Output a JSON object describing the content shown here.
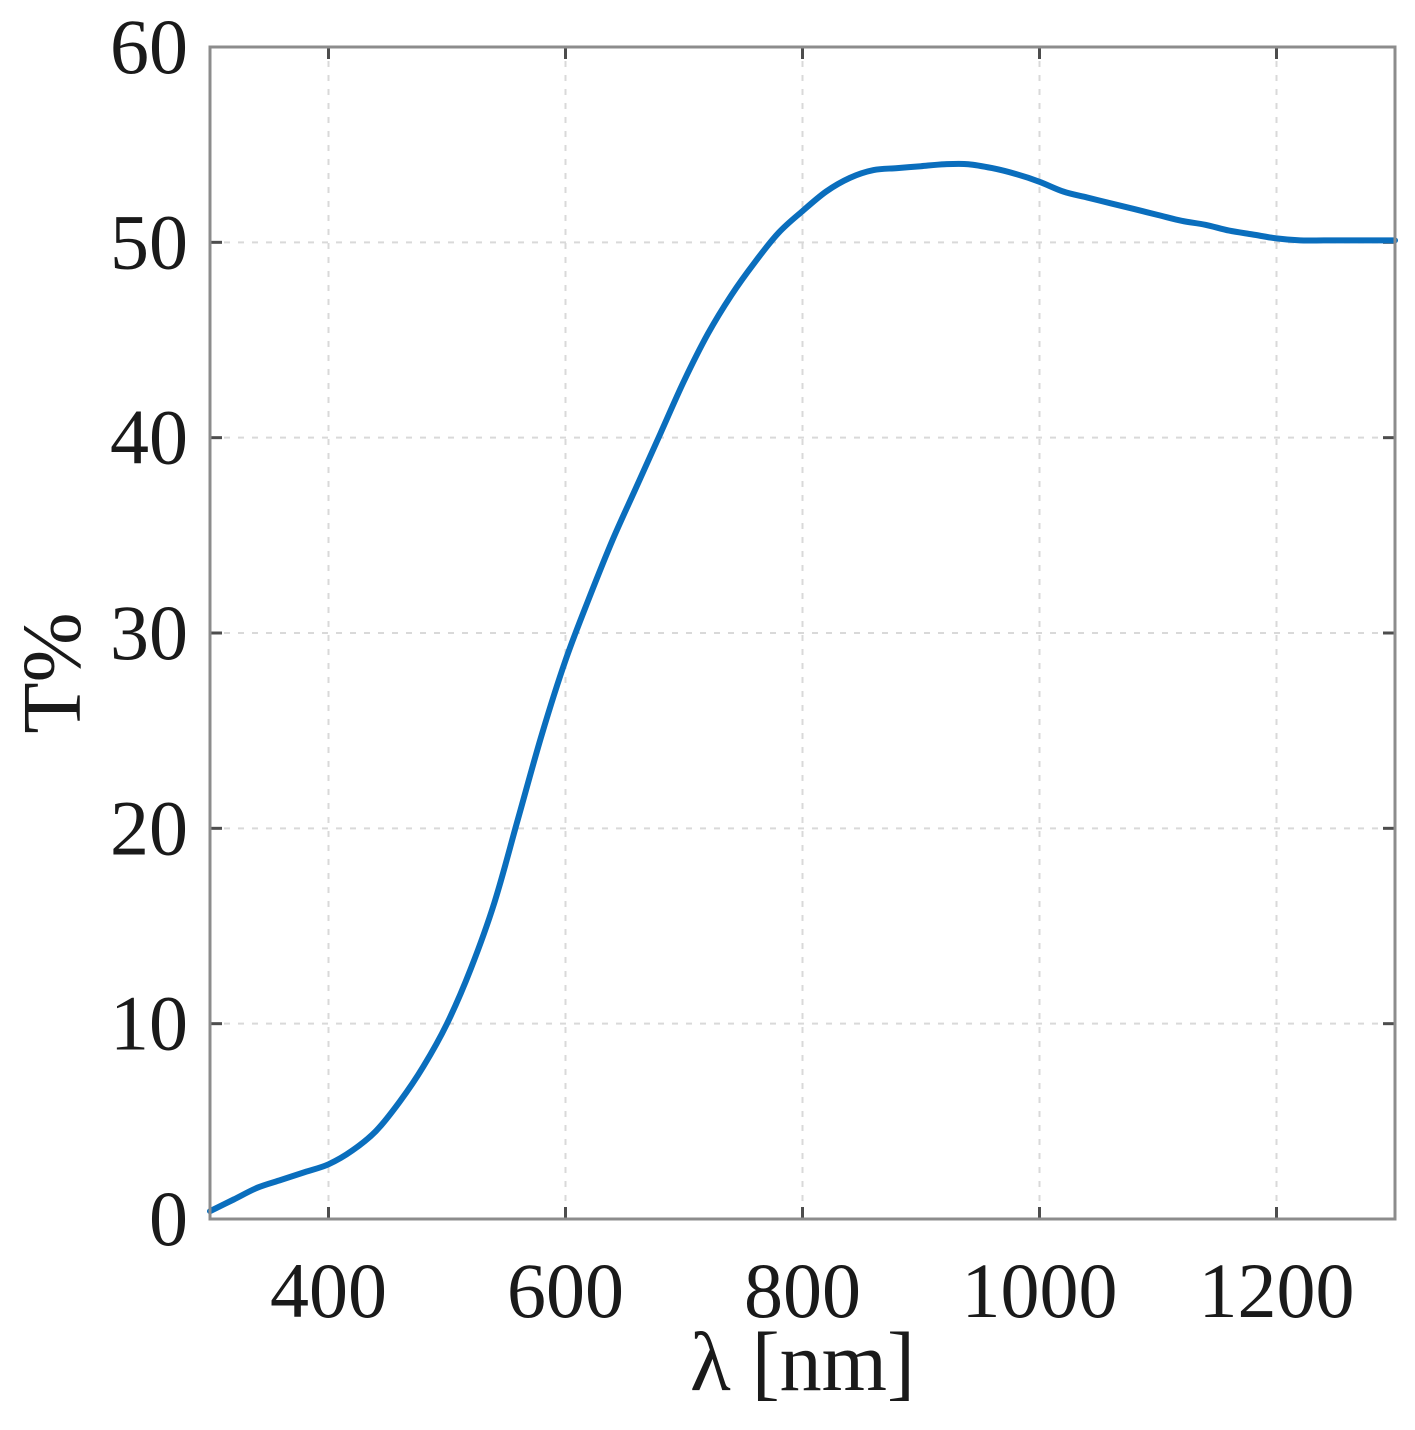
{
  "chart_data": {
    "type": "line",
    "title": "",
    "xlabel": "λ [nm]",
    "ylabel": "T%",
    "xlim": [
      300,
      1300
    ],
    "ylim": [
      0,
      60
    ],
    "xticks": [
      400,
      600,
      800,
      1000,
      1200
    ],
    "yticks": [
      0,
      10,
      20,
      30,
      40,
      50,
      60
    ],
    "grid": true,
    "legend": "none",
    "series": [
      {
        "color": "#0a6ebd",
        "x": [
          300,
          320,
          340,
          360,
          380,
          400,
          420,
          440,
          460,
          480,
          500,
          520,
          540,
          560,
          580,
          600,
          620,
          640,
          660,
          680,
          700,
          720,
          740,
          760,
          780,
          800,
          820,
          840,
          860,
          880,
          900,
          920,
          940,
          960,
          980,
          1000,
          1020,
          1040,
          1060,
          1080,
          1100,
          1120,
          1140,
          1160,
          1180,
          1200,
          1220,
          1240,
          1260,
          1280,
          1300
        ],
        "y": [
          0.4,
          1.0,
          1.6,
          2.0,
          2.4,
          2.8,
          3.5,
          4.5,
          6.0,
          7.8,
          10.0,
          12.8,
          16.2,
          20.5,
          24.8,
          28.6,
          31.8,
          34.8,
          37.5,
          40.2,
          42.9,
          45.3,
          47.3,
          49.0,
          50.5,
          51.6,
          52.6,
          53.3,
          53.7,
          53.8,
          53.9,
          54.0,
          54.0,
          53.8,
          53.5,
          53.1,
          52.6,
          52.3,
          52.0,
          51.7,
          51.4,
          51.1,
          50.9,
          50.6,
          50.4,
          50.2,
          50.1,
          50.1,
          50.1,
          50.1,
          50.1
        ]
      }
    ]
  }
}
